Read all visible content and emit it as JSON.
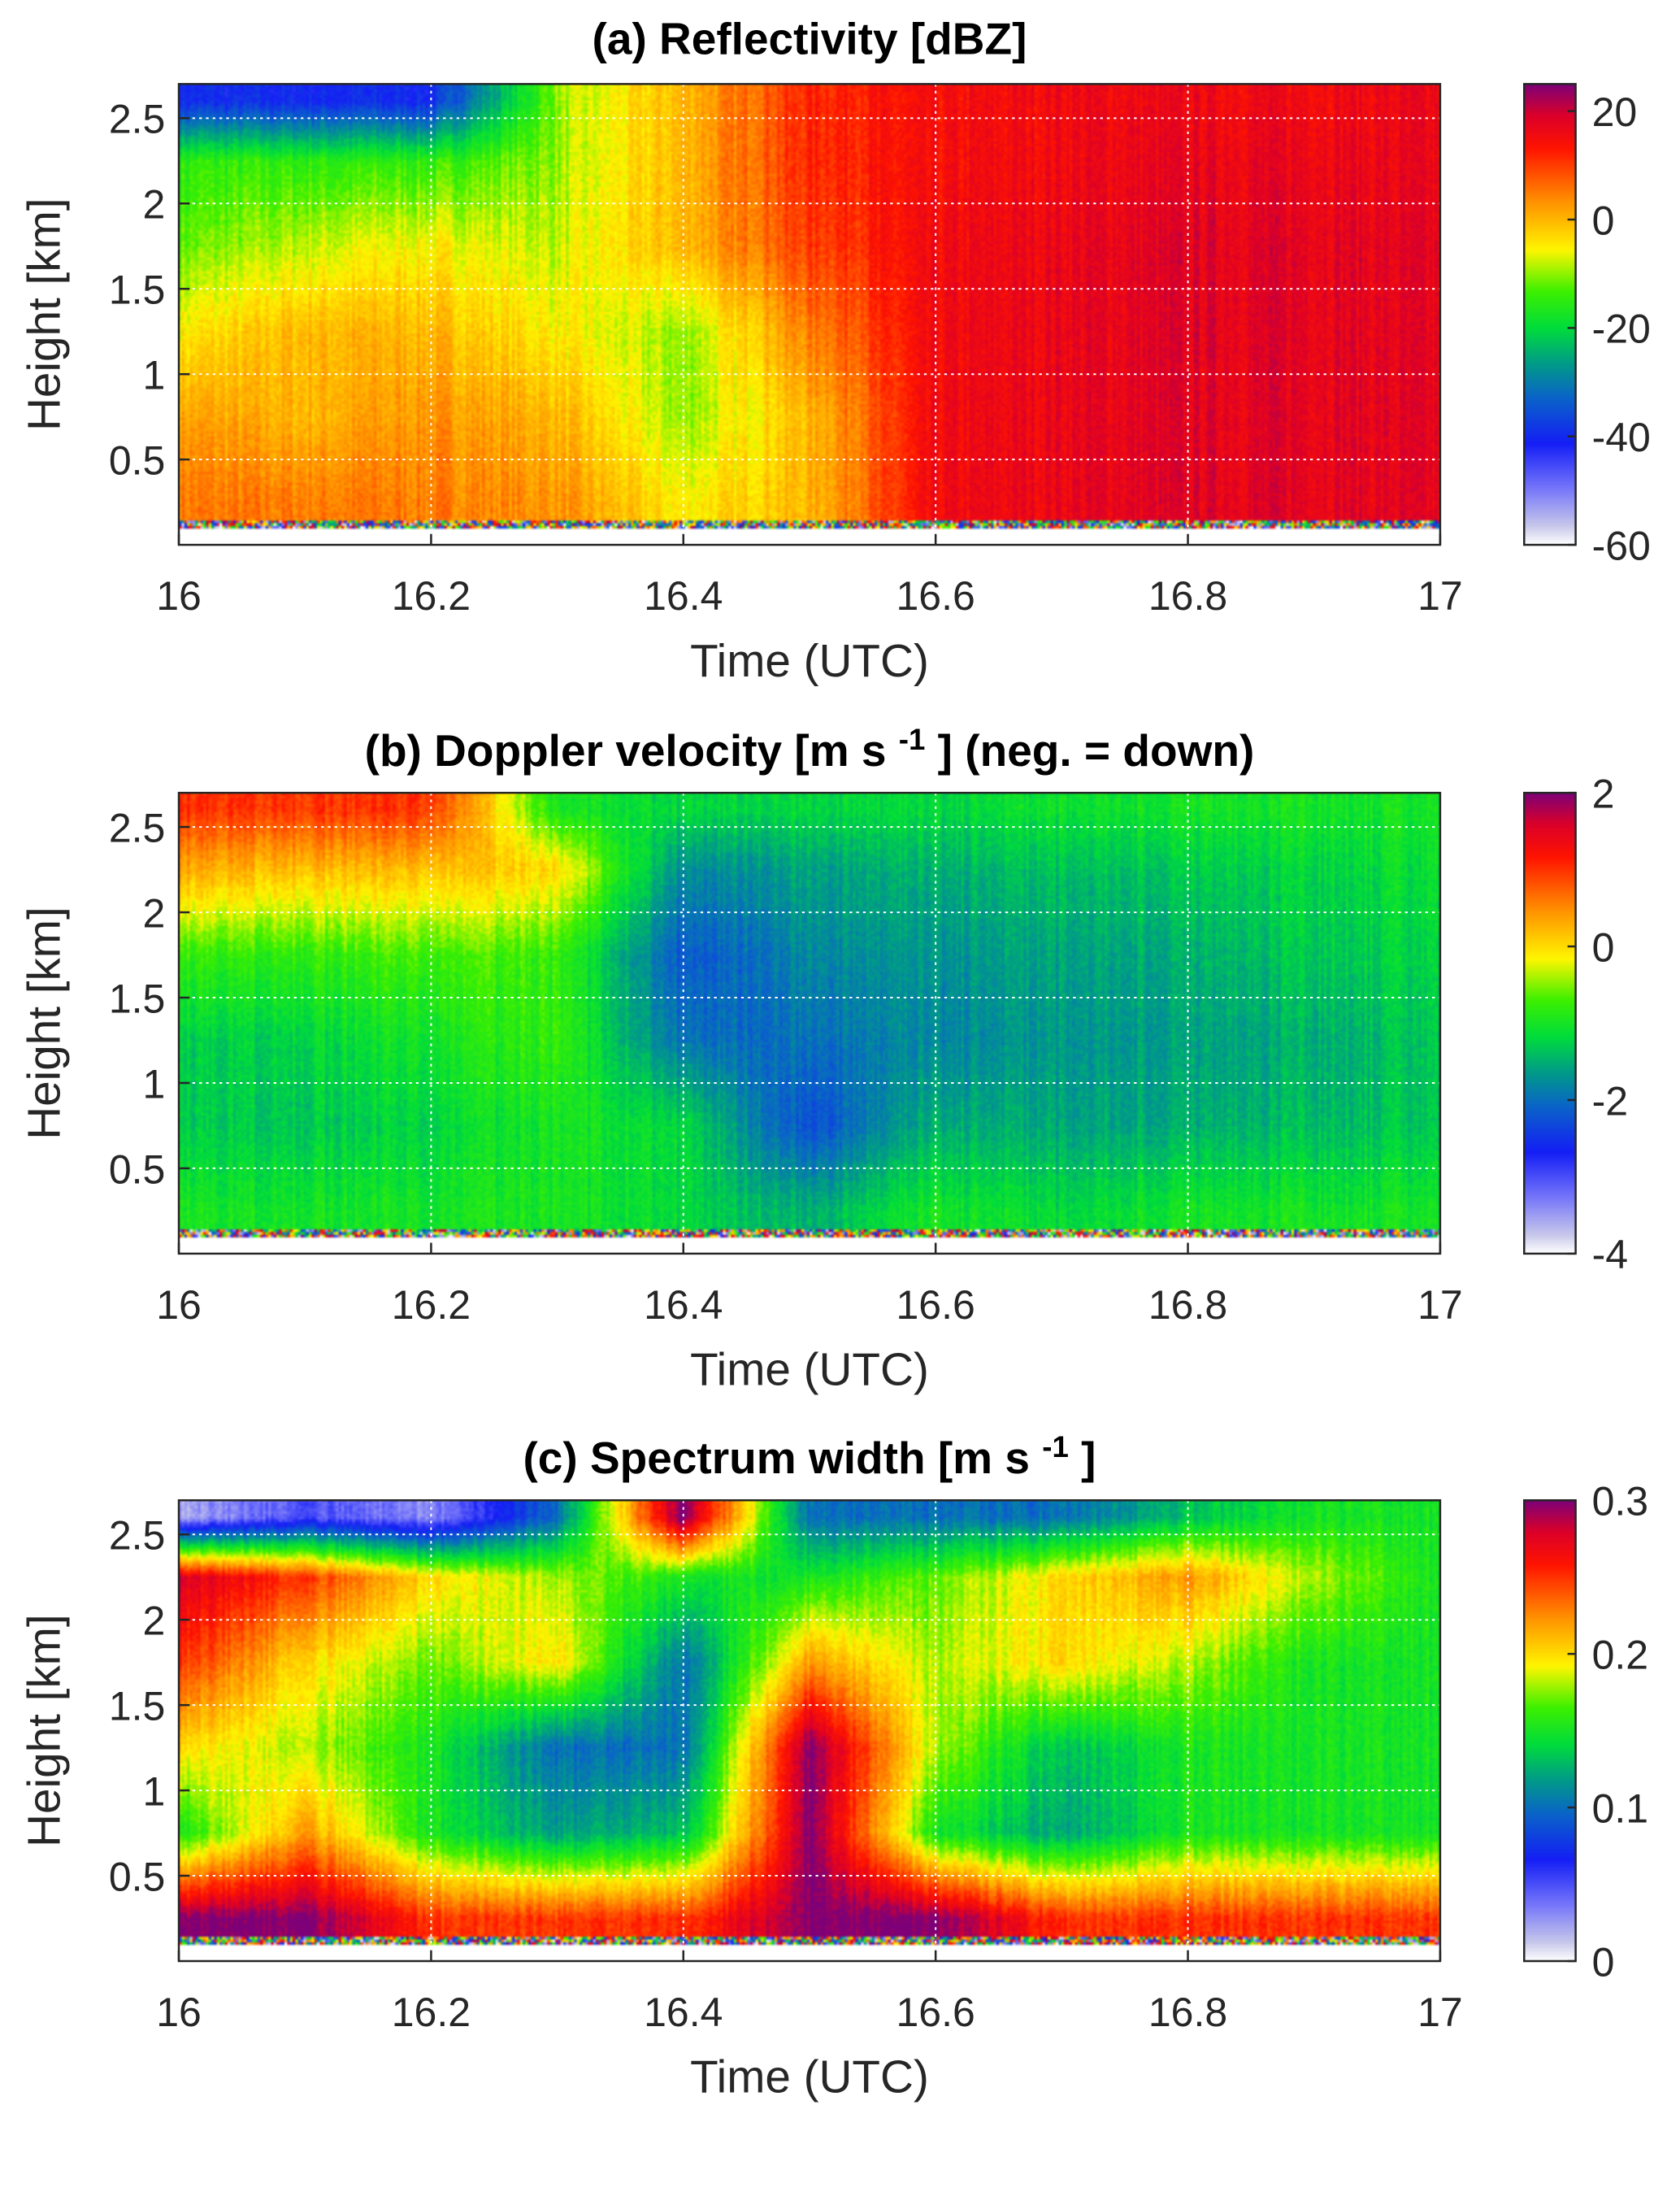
{
  "chart_data": [
    {
      "type": "heatmap",
      "title": "(a) Reflectivity [dBZ]",
      "xlabel": "Time (UTC)",
      "ylabel": "Height [km]",
      "xlim": [
        16,
        17
      ],
      "ylim": [
        0,
        2.7
      ],
      "xticks": [
        "16",
        "16.2",
        "16.4",
        "16.6",
        "16.8",
        "17"
      ],
      "yticks": [
        "0.5",
        "1",
        "1.5",
        "2",
        "2.5"
      ],
      "grid": true,
      "colorbar": {
        "range": [
          -60,
          25
        ],
        "ticks": [
          "20",
          "0",
          "-20",
          "-40",
          "-60"
        ]
      },
      "x": [
        16,
        16.1,
        16.2,
        16.3,
        16.4,
        16.5,
        16.6,
        16.7,
        16.8,
        16.9,
        17
      ],
      "y": [
        0.25,
        0.75,
        1.25,
        1.75,
        2.25,
        2.6
      ],
      "z": [
        [
          5,
          5,
          5,
          3,
          -5,
          0,
          15,
          17,
          18,
          18,
          17
        ],
        [
          2,
          0,
          3,
          0,
          -10,
          0,
          15,
          17,
          18,
          18,
          17
        ],
        [
          -5,
          0,
          0,
          -5,
          -10,
          5,
          15,
          17,
          18,
          18,
          17
        ],
        [
          -12,
          -8,
          -5,
          -8,
          0,
          10,
          15,
          17,
          18,
          18,
          17
        ],
        [
          -15,
          -15,
          -15,
          -10,
          0,
          12,
          14,
          16,
          17,
          17,
          16
        ],
        [
          -40,
          -40,
          -40,
          -10,
          0,
          12,
          14,
          16,
          16,
          16,
          16
        ]
      ]
    },
    {
      "type": "heatmap",
      "title_main": "(b) Doppler velocity [m s",
      "title_sup": "-1",
      "title_end": "] (neg. = down)",
      "xlabel": "Time (UTC)",
      "ylabel": "Height [km]",
      "xlim": [
        16,
        17
      ],
      "ylim": [
        0,
        2.7
      ],
      "xticks": [
        "16",
        "16.2",
        "16.4",
        "16.6",
        "16.8",
        "17"
      ],
      "yticks": [
        "0.5",
        "1",
        "1.5",
        "2",
        "2.5"
      ],
      "grid": true,
      "colorbar": {
        "range": [
          -4,
          2
        ],
        "ticks": [
          "2",
          "0",
          "-2",
          "-4"
        ]
      },
      "x": [
        16,
        16.1,
        16.2,
        16.3,
        16.4,
        16.5,
        16.6,
        16.7,
        16.8,
        16.9,
        17
      ],
      "y": [
        0.25,
        0.75,
        1.25,
        1.75,
        2.25,
        2.6
      ],
      "z": [
        [
          -1,
          -1,
          -1,
          -1,
          -1.2,
          -1.5,
          -1,
          -1.2,
          -1,
          -1,
          -1
        ],
        [
          -1.3,
          -1.3,
          -1.2,
          -1,
          -1.2,
          -2.3,
          -1.5,
          -1.6,
          -1.5,
          -1.4,
          -1.3
        ],
        [
          -1.3,
          -1.2,
          -1,
          -0.8,
          -2,
          -2,
          -1.8,
          -1.7,
          -1.6,
          -1.5,
          -1.3
        ],
        [
          -0.8,
          -0.8,
          -0.7,
          -0.8,
          -2.2,
          -1.8,
          -1.7,
          -1.6,
          -1.5,
          -1.3,
          -1.2
        ],
        [
          0.3,
          0.2,
          0.2,
          0,
          -1.8,
          -1.6,
          -1.5,
          -1.4,
          -1.3,
          -1.2,
          -1.1
        ],
        [
          1,
          1,
          1,
          -1,
          -1.2,
          -1.2,
          -1.2,
          -1.1,
          -1,
          -1,
          -1
        ]
      ]
    },
    {
      "type": "heatmap",
      "title_main": "(c) Spectrum width [m s",
      "title_sup": "-1",
      "title_end": "]",
      "xlabel": "Time (UTC)",
      "ylabel": "Height [km]",
      "xlim": [
        16,
        17
      ],
      "ylim": [
        0,
        2.7
      ],
      "xticks": [
        "16",
        "16.2",
        "16.4",
        "16.6",
        "16.8",
        "17"
      ],
      "yticks": [
        "0.5",
        "1",
        "1.5",
        "2",
        "2.5"
      ],
      "grid": true,
      "colorbar": {
        "range": [
          0,
          0.3
        ],
        "ticks": [
          "0.3",
          "0.2",
          "0.1",
          "0"
        ]
      },
      "x": [
        16,
        16.1,
        16.2,
        16.3,
        16.4,
        16.5,
        16.6,
        16.7,
        16.8,
        16.9,
        17
      ],
      "y": [
        0.25,
        0.75,
        1.25,
        1.75,
        2.25,
        2.6
      ],
      "z": [
        [
          0.3,
          0.3,
          0.25,
          0.25,
          0.25,
          0.3,
          0.3,
          0.25,
          0.25,
          0.25,
          0.25
        ],
        [
          0.15,
          0.22,
          0.15,
          0.12,
          0.13,
          0.3,
          0.15,
          0.12,
          0.15,
          0.15,
          0.15
        ],
        [
          0.2,
          0.18,
          0.15,
          0.1,
          0.1,
          0.3,
          0.18,
          0.13,
          0.15,
          0.15,
          0.15
        ],
        [
          0.25,
          0.2,
          0.17,
          0.2,
          0.1,
          0.22,
          0.18,
          0.2,
          0.18,
          0.15,
          0.15
        ],
        [
          0.28,
          0.25,
          0.2,
          0.18,
          0.15,
          0.15,
          0.17,
          0.2,
          0.22,
          0.18,
          0.15
        ],
        [
          0.02,
          0.05,
          0.03,
          0.1,
          0.3,
          0.1,
          0.1,
          0.1,
          0.13,
          0.15,
          0.15
        ]
      ]
    }
  ]
}
